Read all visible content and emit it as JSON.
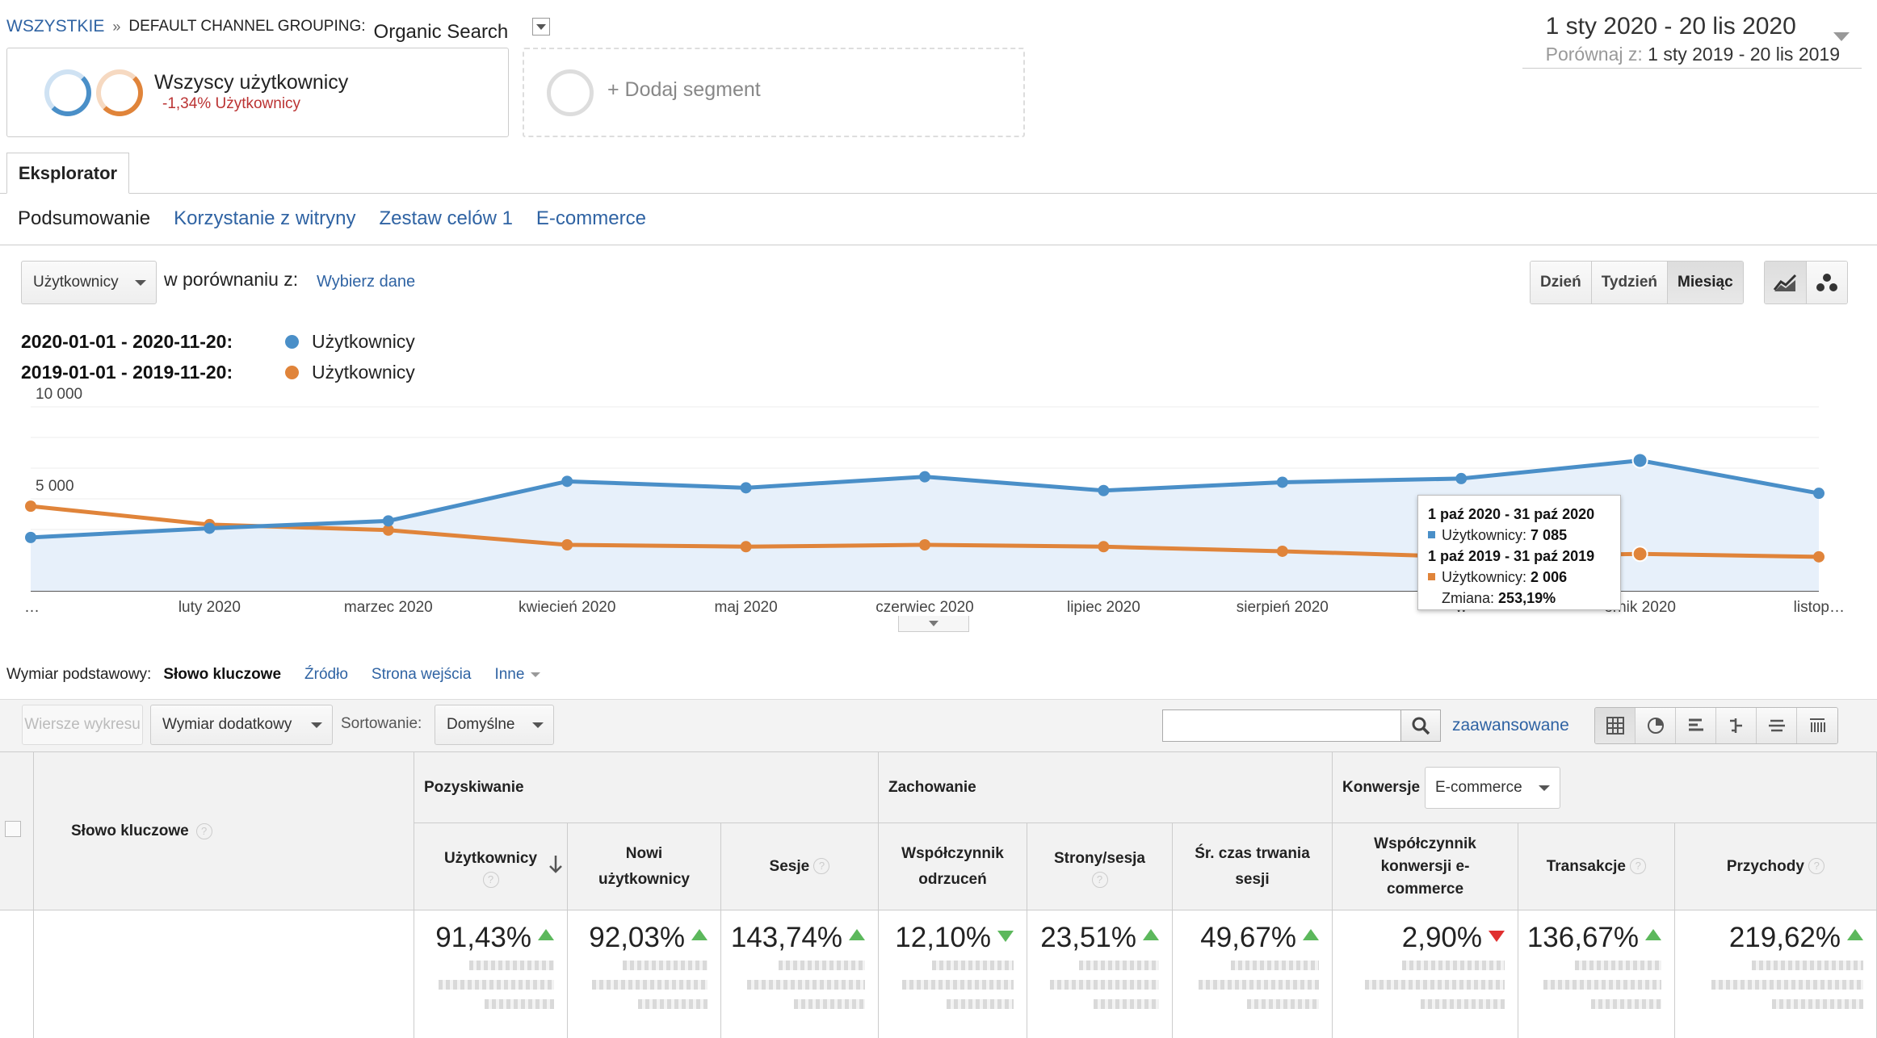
{
  "breadcrumb": {
    "all": "WSZYSTKIE",
    "separator": "»",
    "dimension": "DEFAULT CHANNEL GROUPING:",
    "value": "Organic Search"
  },
  "date_range": {
    "main": "1 sty 2020 - 20 lis 2020",
    "compare_label": "Porównaj z:",
    "compare_range": "1 sty 2019 - 20 lis 2019"
  },
  "segments": {
    "active": {
      "title": "Wszyscy użytkownicy",
      "subtitle": "-1,34% Użytkownicy"
    },
    "add": "+ Dodaj segment"
  },
  "explorer_tab": "Eksplorator",
  "subtabs": [
    "Podsumowanie",
    "Korzystanie z witryny",
    "Zestaw celów 1",
    "E-commerce"
  ],
  "metric_select": "Użytkownicy",
  "compare_text": "w porównaniu z:",
  "choose_data": "Wybierz dane",
  "period_buttons": [
    "Dzień",
    "Tydzień",
    "Miesiąc"
  ],
  "legend": [
    {
      "range": "2020-01-01 - 2020-11-20:",
      "label": "Użytkownicy",
      "color": "#4a8fc8"
    },
    {
      "range": "2019-01-01 - 2019-11-20:",
      "label": "Użytkownicy",
      "color": "#e0843a"
    }
  ],
  "chart_data": {
    "type": "line",
    "x": [
      "…",
      "luty 2020",
      "marzec 2020",
      "kwiecień 2020",
      "maj 2020",
      "czerwiec 2020",
      "lipiec 2020",
      "sierpień 2020",
      "w",
      "ernik 2020",
      "listop…"
    ],
    "y_tick_labels": [
      "10 000",
      "5 000"
    ],
    "ylim": [
      0,
      10000
    ],
    "series": [
      {
        "color": "#4a8fc8",
        "values": [
          2900,
          3400,
          3800,
          5950,
          5600,
          6200,
          5450,
          5900,
          6100,
          7085,
          5300
        ]
      },
      {
        "color": "#e0843a",
        "values": [
          4600,
          3600,
          3300,
          2500,
          2400,
          2500,
          2400,
          2150,
          1850,
          2006,
          1850
        ]
      }
    ],
    "tooltip": {
      "range_current": "1 paź 2020 - 31 paź 2020",
      "label_current": "Użytkownicy:",
      "value_current": "7 085",
      "range_previous": "1 paź 2019 - 31 paź 2019",
      "label_previous": "Użytkownicy:",
      "value_previous": "2 006",
      "change_label": "Zmiana:",
      "change_value": "253,19%"
    }
  },
  "dimension_bar": {
    "label": "Wymiar podstawowy:",
    "active": "Słowo kluczowe",
    "links": [
      "Źródło",
      "Strona wejścia"
    ],
    "more": "Inne"
  },
  "toolbar": {
    "plot_rows": "Wiersze wykresu",
    "secondary_dimension": "Wymiar dodatkowy",
    "sort_label": "Sortowanie:",
    "sort_value": "Domyślne",
    "advanced": "zaawansowane"
  },
  "table": {
    "key_column": "Słowo kluczowe",
    "groups": [
      "Pozyskiwanie",
      "Zachowanie",
      "Konwersje"
    ],
    "conversion_select": "E-commerce",
    "columns": [
      {
        "label": "Użytkownicy",
        "value": "91,43%",
        "trend": "up"
      },
      {
        "label": "Nowi użytkownicy",
        "value": "92,03%",
        "trend": "up"
      },
      {
        "label": "Sesje",
        "value": "143,74%",
        "trend": "up"
      },
      {
        "label": "Współczynnik odrzuceń",
        "value": "12,10%",
        "trend": "down-good"
      },
      {
        "label": "Strony/sesja",
        "value": "23,51%",
        "trend": "up"
      },
      {
        "label": "Śr. czas trwania sesji",
        "value": "49,67%",
        "trend": "up"
      },
      {
        "label": "Współczynnik konwersji e-commerce",
        "value": "2,90%",
        "trend": "down-bad"
      },
      {
        "label": "Transakcje",
        "value": "136,67%",
        "trend": "up"
      },
      {
        "label": "Przychody",
        "value": "219,62%",
        "trend": "up"
      }
    ]
  }
}
